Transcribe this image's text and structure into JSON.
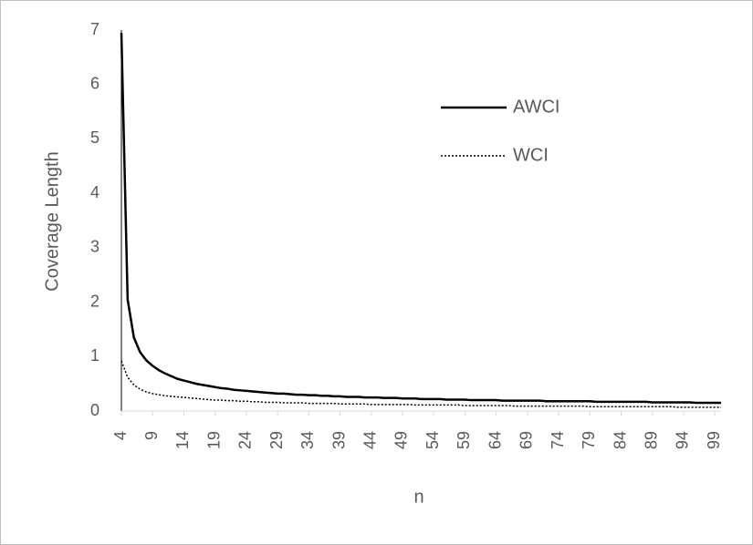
{
  "chart_data": {
    "type": "line",
    "x_label": "n",
    "y_label": "Coverage Length",
    "x": [
      4,
      5,
      6,
      7,
      8,
      9,
      10,
      11,
      12,
      13,
      14,
      15,
      16,
      17,
      18,
      19,
      20,
      21,
      22,
      23,
      24,
      25,
      26,
      27,
      28,
      29,
      30,
      31,
      32,
      33,
      34,
      35,
      36,
      37,
      38,
      39,
      40,
      41,
      42,
      43,
      44,
      45,
      46,
      47,
      48,
      49,
      50,
      51,
      52,
      53,
      54,
      55,
      56,
      57,
      58,
      59,
      60,
      61,
      62,
      63,
      64,
      65,
      66,
      67,
      68,
      69,
      70,
      71,
      72,
      73,
      74,
      75,
      76,
      77,
      78,
      79,
      80,
      81,
      82,
      83,
      84,
      85,
      86,
      87,
      88,
      89,
      90,
      91,
      92,
      93,
      94,
      95,
      96,
      97,
      98,
      99,
      100
    ],
    "series": [
      {
        "name": "AWCI",
        "color": "#000000",
        "dash": "solid",
        "values": [
          6.95,
          2.05,
          1.35,
          1.08,
          0.93,
          0.83,
          0.75,
          0.69,
          0.64,
          0.59,
          0.56,
          0.53,
          0.5,
          0.48,
          0.46,
          0.44,
          0.42,
          0.41,
          0.39,
          0.38,
          0.37,
          0.36,
          0.35,
          0.34,
          0.33,
          0.32,
          0.32,
          0.31,
          0.3,
          0.3,
          0.29,
          0.29,
          0.28,
          0.28,
          0.27,
          0.27,
          0.26,
          0.26,
          0.26,
          0.25,
          0.25,
          0.25,
          0.24,
          0.24,
          0.24,
          0.23,
          0.23,
          0.23,
          0.22,
          0.22,
          0.22,
          0.22,
          0.21,
          0.21,
          0.21,
          0.21,
          0.2,
          0.2,
          0.2,
          0.2,
          0.2,
          0.19,
          0.19,
          0.19,
          0.19,
          0.19,
          0.19,
          0.19,
          0.18,
          0.18,
          0.18,
          0.18,
          0.18,
          0.18,
          0.18,
          0.18,
          0.17,
          0.17,
          0.17,
          0.17,
          0.17,
          0.17,
          0.17,
          0.17,
          0.17,
          0.16,
          0.16,
          0.16,
          0.16,
          0.16,
          0.16,
          0.16,
          0.15,
          0.15,
          0.15,
          0.15,
          0.15
        ]
      },
      {
        "name": "WCI",
        "color": "#000000",
        "dash": "dotted",
        "values": [
          0.92,
          0.62,
          0.48,
          0.4,
          0.35,
          0.32,
          0.3,
          0.28,
          0.27,
          0.26,
          0.25,
          0.24,
          0.23,
          0.22,
          0.21,
          0.2,
          0.2,
          0.19,
          0.19,
          0.18,
          0.18,
          0.17,
          0.17,
          0.16,
          0.16,
          0.16,
          0.15,
          0.15,
          0.15,
          0.15,
          0.14,
          0.14,
          0.14,
          0.14,
          0.14,
          0.13,
          0.13,
          0.13,
          0.13,
          0.13,
          0.12,
          0.12,
          0.12,
          0.12,
          0.12,
          0.12,
          0.12,
          0.11,
          0.11,
          0.11,
          0.11,
          0.11,
          0.11,
          0.11,
          0.11,
          0.1,
          0.1,
          0.1,
          0.1,
          0.1,
          0.1,
          0.1,
          0.1,
          0.09,
          0.09,
          0.09,
          0.09,
          0.09,
          0.09,
          0.09,
          0.09,
          0.09,
          0.09,
          0.09,
          0.09,
          0.08,
          0.08,
          0.08,
          0.08,
          0.08,
          0.08,
          0.08,
          0.08,
          0.08,
          0.08,
          0.08,
          0.08,
          0.08,
          0.08,
          0.07,
          0.07,
          0.07,
          0.07,
          0.07,
          0.07,
          0.07,
          0.07
        ]
      }
    ],
    "xlim": [
      4,
      100
    ],
    "xticks": [
      4,
      9,
      14,
      19,
      24,
      29,
      34,
      39,
      44,
      49,
      54,
      59,
      64,
      69,
      74,
      79,
      84,
      89,
      94,
      99
    ],
    "ylim": [
      0,
      7
    ],
    "yticks": [
      0,
      1,
      2,
      3,
      4,
      5,
      6,
      7
    ],
    "grid": false,
    "legend": "upper right"
  }
}
